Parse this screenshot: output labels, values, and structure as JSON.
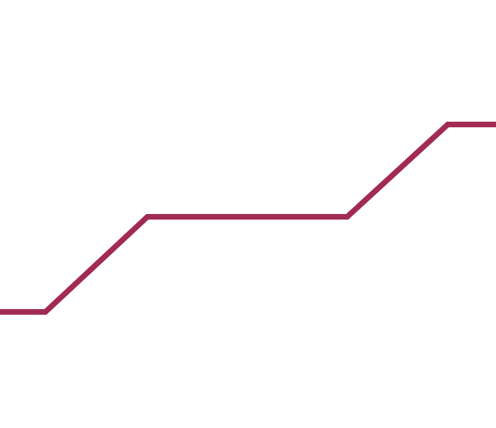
{
  "stroke_color": "#A22B51",
  "background_color": "#FFFFFF",
  "line": {
    "shape": "stepped-rising-polyline",
    "levels": 3,
    "rising_segments": 2
  }
}
